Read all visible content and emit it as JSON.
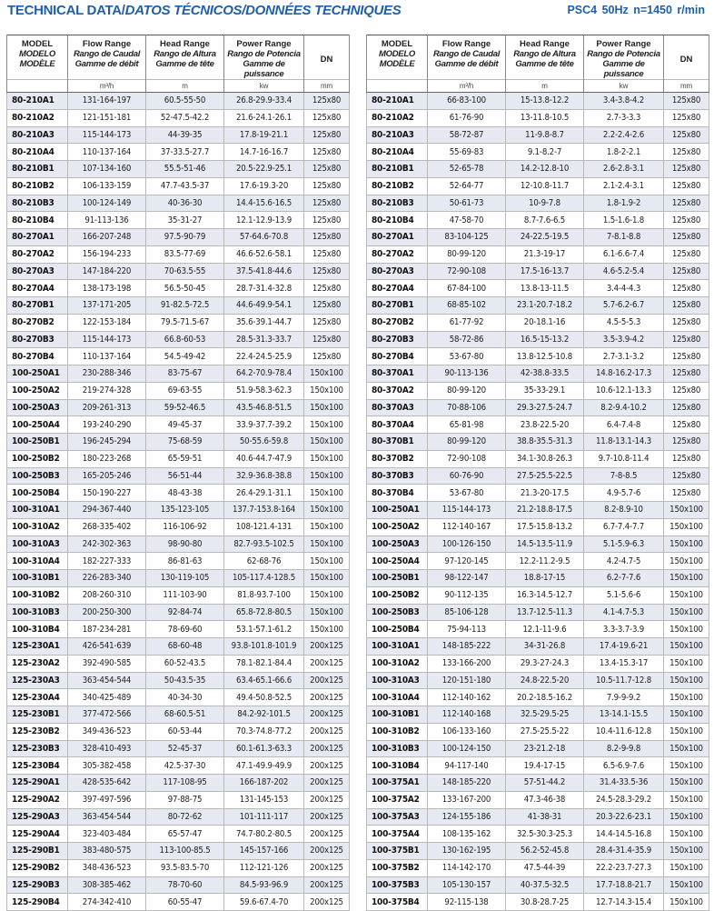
{
  "header": {
    "title_en": "TECHNICAL DATA/",
    "title_es_fr": "DATOS TÉCNICOS/DONNÉES TECHNIQUES",
    "spec": "PSC4  50Hz  n=1450 r/min",
    "accent_color": "#1f5fa9"
  },
  "columns": {
    "model": [
      "MODEL",
      "MODELO",
      "MODÈLE"
    ],
    "flow": [
      "Flow Range",
      "Rango de Caudal",
      "Gamme de débit"
    ],
    "head": [
      "Head Range",
      "Rango de Altura",
      "Gamme de tête"
    ],
    "power": [
      "Power Range",
      "Rango de Potencia",
      "Gamme de puissance"
    ],
    "dn": "DN",
    "units": [
      "",
      "m³/h",
      "m",
      "kw",
      "mm"
    ]
  },
  "left_table": [
    [
      "80-210A1",
      "131-164-197",
      "60.5-55-50",
      "26.8-29.9-33.4",
      "125x80"
    ],
    [
      "80-210A2",
      "121-151-181",
      "52-47.5-42.2",
      "21.6-24.1-26.1",
      "125x80"
    ],
    [
      "80-210A3",
      "115-144-173",
      "44-39-35",
      "17.8-19-21.1",
      "125x80"
    ],
    [
      "80-210A4",
      "110-137-164",
      "37-33.5-27.7",
      "14.7-16-16.7",
      "125x80"
    ],
    [
      "80-210B1",
      "107-134-160",
      "55.5-51-46",
      "20.5-22.9-25.1",
      "125x80"
    ],
    [
      "80-210B2",
      "106-133-159",
      "47.7-43.5-37",
      "17.6-19.3-20",
      "125x80"
    ],
    [
      "80-210B3",
      "100-124-149",
      "40-36-30",
      "14.4-15.6-16.5",
      "125x80"
    ],
    [
      "80-210B4",
      "91-113-136",
      "35-31-27",
      "12.1-12.9-13.9",
      "125x80"
    ],
    [
      "80-270A1",
      "166-207-248",
      "97.5-90-79",
      "57-64.6-70.8",
      "125x80"
    ],
    [
      "80-270A2",
      "156-194-233",
      "83.5-77-69",
      "46.6-52.6-58.1",
      "125x80"
    ],
    [
      "80-270A3",
      "147-184-220",
      "70-63.5-55",
      "37.5-41.8-44.6",
      "125x80"
    ],
    [
      "80-270A4",
      "138-173-198",
      "56.5-50-45",
      "28.7-31.4-32.8",
      "125x80"
    ],
    [
      "80-270B1",
      "137-171-205",
      "91-82.5-72.5",
      "44.6-49.9-54.1",
      "125x80"
    ],
    [
      "80-270B2",
      "122-153-184",
      "79.5-71.5-67",
      "35.6-39.1-44.7",
      "125x80"
    ],
    [
      "80-270B3",
      "115-144-173",
      "66.8-60-53",
      "28.5-31.3-33.7",
      "125x80"
    ],
    [
      "80-270B4",
      "110-137-164",
      "54.5-49-42",
      "22.4-24.5-25.9",
      "125x80"
    ],
    [
      "100-250A1",
      "230-288-346",
      "83-75-67",
      "64.2-70.9-78.4",
      "150x100"
    ],
    [
      "100-250A2",
      "219-274-328",
      "69-63-55",
      "51.9-58.3-62.3",
      "150x100"
    ],
    [
      "100-250A3",
      "209-261-313",
      "59-52-46.5",
      "43.5-46.8-51.5",
      "150x100"
    ],
    [
      "100-250A4",
      "193-240-290",
      "49-45-37",
      "33.9-37.7-39.2",
      "150x100"
    ],
    [
      "100-250B1",
      "196-245-294",
      "75-68-59",
      "50-55.6-59.8",
      "150x100"
    ],
    [
      "100-250B2",
      "180-223-268",
      "65-59-51",
      "40.6-44.7-47.9",
      "150x100"
    ],
    [
      "100-250B3",
      "165-205-246",
      "56-51-44",
      "32.9-36.8-38.8",
      "150x100"
    ],
    [
      "100-250B4",
      "150-190-227",
      "48-43-38",
      "26.4-29.1-31.1",
      "150x100"
    ],
    [
      "100-310A1",
      "294-367-440",
      "135-123-105",
      "137.7-153.8-164",
      "150x100"
    ],
    [
      "100-310A2",
      "268-335-402",
      "116-106-92",
      "108-121.4-131",
      "150x100"
    ],
    [
      "100-310A3",
      "242-302-363",
      "98-90-80",
      "82.7-93.5-102.5",
      "150x100"
    ],
    [
      "100-310A4",
      "182-227-333",
      "86-81-63",
      "62-68-76",
      "150x100"
    ],
    [
      "100-310B1",
      "226-283-340",
      "130-119-105",
      "105-117.4-128.5",
      "150x100"
    ],
    [
      "100-310B2",
      "208-260-310",
      "111-103-90",
      "81.8-93.7-100",
      "150x100"
    ],
    [
      "100-310B3",
      "200-250-300",
      "92-84-74",
      "65.8-72.8-80.5",
      "150x100"
    ],
    [
      "100-310B4",
      "187-234-281",
      "78-69-60",
      "53.1-57.1-61.2",
      "150x100"
    ],
    [
      "125-230A1",
      "426-541-639",
      "68-60-48",
      "93.8-101.8-101.9",
      "200x125"
    ],
    [
      "125-230A2",
      "392-490-585",
      "60-52-43.5",
      "78.1-82.1-84.4",
      "200x125"
    ],
    [
      "125-230A3",
      "363-454-544",
      "50-43.5-35",
      "63.4-65.1-66.6",
      "200x125"
    ],
    [
      "125-230A4",
      "340-425-489",
      "40-34-30",
      "49.4-50.8-52.5",
      "200x125"
    ],
    [
      "125-230B1",
      "377-472-566",
      "68-60.5-51",
      "84.2-92-101.5",
      "200x125"
    ],
    [
      "125-230B2",
      "349-436-523",
      "60-53-44",
      "70.3-74.8-77.2",
      "200x125"
    ],
    [
      "125-230B3",
      "328-410-493",
      "52-45-37",
      "60.1-61.3-63.3",
      "200x125"
    ],
    [
      "125-230B4",
      "305-382-458",
      "42.5-37-30",
      "47.1-49.9-49.9",
      "200x125"
    ],
    [
      "125-290A1",
      "428-535-642",
      "117-108-95",
      "166-187-202",
      "200x125"
    ],
    [
      "125-290A2",
      "397-497-596",
      "97-88-75",
      "131-145-153",
      "200x125"
    ],
    [
      "125-290A3",
      "363-454-544",
      "80-72-62",
      "101-111-117",
      "200x125"
    ],
    [
      "125-290A4",
      "323-403-484",
      "65-57-47",
      "74.7-80.2-80.5",
      "200x125"
    ],
    [
      "125-290B1",
      "383-480-575",
      "113-100-85.5",
      "145-157-166",
      "200x125"
    ],
    [
      "125-290B2",
      "348-436-523",
      "93.5-83.5-70",
      "112-121-126",
      "200x125"
    ],
    [
      "125-290B3",
      "308-385-462",
      "78-70-60",
      "84.5-93-96.9",
      "200x125"
    ],
    [
      "125-290B4",
      "274-342-410",
      "60-55-47",
      "59.6-67.4-70",
      "200x125"
    ]
  ],
  "right_table": [
    [
      "80-210A1",
      "66-83-100",
      "15-13.8-12.2",
      "3.4-3.8-4.2",
      "125x80"
    ],
    [
      "80-210A2",
      "61-76-90",
      "13-11.8-10.5",
      "2.7-3-3.3",
      "125x80"
    ],
    [
      "80-210A3",
      "58-72-87",
      "11-9.8-8.7",
      "2.2-2.4-2.6",
      "125x80"
    ],
    [
      "80-210A4",
      "55-69-83",
      "9.1-8.2-7",
      "1.8-2-2.1",
      "125x80"
    ],
    [
      "80-210B1",
      "52-65-78",
      "14.2-12.8-10",
      "2.6-2.8-3.1",
      "125x80"
    ],
    [
      "80-210B2",
      "52-64-77",
      "12-10.8-11.7",
      "2.1-2.4-3.1",
      "125x80"
    ],
    [
      "80-210B3",
      "50-61-73",
      "10-9-7.8",
      "1.8-1.9-2",
      "125x80"
    ],
    [
      "80-210B4",
      "47-58-70",
      "8.7-7.6-6.5",
      "1.5-1.6-1.8",
      "125x80"
    ],
    [
      "80-270A1",
      "83-104-125",
      "24-22.5-19.5",
      "7-8.1-8.8",
      "125x80"
    ],
    [
      "80-270A2",
      "80-99-120",
      "21.3-19-17",
      "6.1-6.6-7.4",
      "125x80"
    ],
    [
      "80-270A3",
      "72-90-108",
      "17.5-16-13.7",
      "4.6-5.2-5.4",
      "125x80"
    ],
    [
      "80-270A4",
      "67-84-100",
      "13.8-13-11.5",
      "3.4-4-4.3",
      "125x80"
    ],
    [
      "80-270B1",
      "68-85-102",
      "23.1-20.7-18.2",
      "5.7-6.2-6.7",
      "125x80"
    ],
    [
      "80-270B2",
      "61-77-92",
      "20-18.1-16",
      "4.5-5-5.3",
      "125x80"
    ],
    [
      "80-270B3",
      "58-72-86",
      "16.5-15-13.2",
      "3.5-3.9-4.2",
      "125x80"
    ],
    [
      "80-270B4",
      "53-67-80",
      "13.8-12.5-10.8",
      "2.7-3.1-3.2",
      "125x80"
    ],
    [
      "80-370A1",
      "90-113-136",
      "42-38.8-33.5",
      "14.8-16.2-17.3",
      "125x80"
    ],
    [
      "80-370A2",
      "80-99-120",
      "35-33-29.1",
      "10.6-12.1-13.3",
      "125x80"
    ],
    [
      "80-370A3",
      "70-88-106",
      "29.3-27.5-24.7",
      "8.2-9.4-10.2",
      "125x80"
    ],
    [
      "80-370A4",
      "65-81-98",
      "23.8-22.5-20",
      "6.4-7.4-8",
      "125x80"
    ],
    [
      "80-370B1",
      "80-99-120",
      "38.8-35.5-31.3",
      "11.8-13.1-14.3",
      "125x80"
    ],
    [
      "80-370B2",
      "72-90-108",
      "34.1-30.8-26.3",
      "9.7-10.8-11.4",
      "125x80"
    ],
    [
      "80-370B3",
      "60-76-90",
      "27.5-25.5-22.5",
      "7-8-8.5",
      "125x80"
    ],
    [
      "80-370B4",
      "53-67-80",
      "21.3-20-17.5",
      "4.9-5.7-6",
      "125x80"
    ],
    [
      "100-250A1",
      "115-144-173",
      "21.2-18.8-17.5",
      "8.2-8.9-10",
      "150x100"
    ],
    [
      "100-250A2",
      "112-140-167",
      "17.5-15.8-13.2",
      "6.7-7.4-7.7",
      "150x100"
    ],
    [
      "100-250A3",
      "100-126-150",
      "14.5-13.5-11.9",
      "5.1-5.9-6.3",
      "150x100"
    ],
    [
      "100-250A4",
      "97-120-145",
      "12.2-11.2-9.5",
      "4.2-4.7-5",
      "150x100"
    ],
    [
      "100-250B1",
      "98-122-147",
      "18.8-17-15",
      "6.2-7-7.6",
      "150x100"
    ],
    [
      "100-250B2",
      "90-112-135",
      "16.3-14.5-12.7",
      "5.1-5.6-6",
      "150x100"
    ],
    [
      "100-250B3",
      "85-106-128",
      "13.7-12.5-11.3",
      "4.1-4.7-5.3",
      "150x100"
    ],
    [
      "100-250B4",
      "75-94-113",
      "12.1-11-9.6",
      "3.3-3.7-3.9",
      "150x100"
    ],
    [
      "100-310A1",
      "148-185-222",
      "34-31-26.8",
      "17.4-19.6-21",
      "150x100"
    ],
    [
      "100-310A2",
      "133-166-200",
      "29.3-27-24.3",
      "13.4-15.3-17",
      "150x100"
    ],
    [
      "100-310A3",
      "120-151-180",
      "24.8-22.5-20",
      "10.5-11.7-12.8",
      "150x100"
    ],
    [
      "100-310A4",
      "112-140-162",
      "20.2-18.5-16.2",
      "7.9-9-9.2",
      "150x100"
    ],
    [
      "100-310B1",
      "112-140-168",
      "32.5-29.5-25",
      "13-14.1-15.5",
      "150x100"
    ],
    [
      "100-310B2",
      "106-133-160",
      "27.5-25.5-22",
      "10.4-11.6-12.8",
      "150x100"
    ],
    [
      "100-310B3",
      "100-124-150",
      "23-21.2-18",
      "8.2-9-9.8",
      "150x100"
    ],
    [
      "100-310B4",
      "94-117-140",
      "19.4-17-15",
      "6.5-6.9-7.6",
      "150x100"
    ],
    [
      "100-375A1",
      "148-185-220",
      "57-51-44.2",
      "31.4-33.5-36",
      "150x100"
    ],
    [
      "100-375A2",
      "133-167-200",
      "47.3-46-38",
      "24.5-28.3-29.2",
      "150x100"
    ],
    [
      "100-375A3",
      "124-155-186",
      "41-38-31",
      "20.3-22.6-23.1",
      "150x100"
    ],
    [
      "100-375A4",
      "108-135-162",
      "32.5-30.3-25.3",
      "14.4-14.5-16.8",
      "150x100"
    ],
    [
      "100-375B1",
      "130-162-195",
      "56.2-52-45.8",
      "28.4-31.4-35.9",
      "150x100"
    ],
    [
      "100-375B2",
      "114-142-170",
      "47.5-44-39",
      "22.2-23.7-27.3",
      "150x100"
    ],
    [
      "100-375B3",
      "105-130-157",
      "40-37.5-32.5",
      "17.7-18.8-21.7",
      "150x100"
    ],
    [
      "100-375B4",
      "92-115-138",
      "30.8-28.7-25",
      "12.7-14.3-15.4",
      "150x100"
    ]
  ]
}
